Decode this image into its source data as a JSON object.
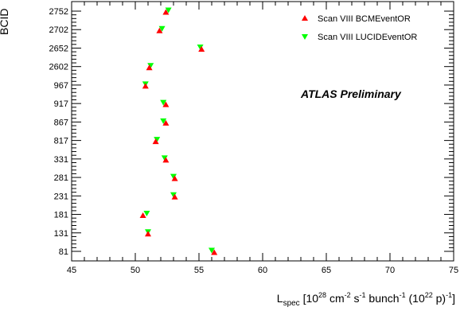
{
  "chart_data": {
    "type": "scatter",
    "title": "",
    "xlabel": {
      "main": "L",
      "sub": "spec",
      "p1": " [10",
      "sup1": "28",
      "p2": " cm",
      "sup2": "-2",
      "p3": " s",
      "sup3": "-1",
      "p4": " bunch",
      "sup4": "-1",
      "p5": " (10",
      "sup5": "22",
      "p6": " p)",
      "sup6": "-1",
      "p7": "]"
    },
    "ylabel": "BCID",
    "xlim": [
      45,
      75
    ],
    "x_ticks": [
      "45",
      "50",
      "55",
      "60",
      "65",
      "70",
      "75"
    ],
    "categories": [
      "81",
      "131",
      "181",
      "231",
      "281",
      "331",
      "817",
      "867",
      "917",
      "967",
      "2602",
      "2652",
      "2702",
      "2752"
    ],
    "series": [
      {
        "name": "Scan VIII  BCMEventOR",
        "color": "#ff0000",
        "marker": "triangle-up",
        "values": [
          56.2,
          51.0,
          50.6,
          53.1,
          53.1,
          52.4,
          51.6,
          52.4,
          52.4,
          50.8,
          51.1,
          55.2,
          51.9,
          52.4
        ]
      },
      {
        "name": "Scan VIII  LUCIDEventOR",
        "color": "#00ff00",
        "marker": "triangle-down",
        "values": [
          56.0,
          51.0,
          50.9,
          53.0,
          53.0,
          52.3,
          51.7,
          52.2,
          52.2,
          50.8,
          51.2,
          55.1,
          52.1,
          52.6
        ]
      }
    ],
    "annotation": "ATLAS Preliminary",
    "legend_position": "top-right",
    "grid": false
  }
}
